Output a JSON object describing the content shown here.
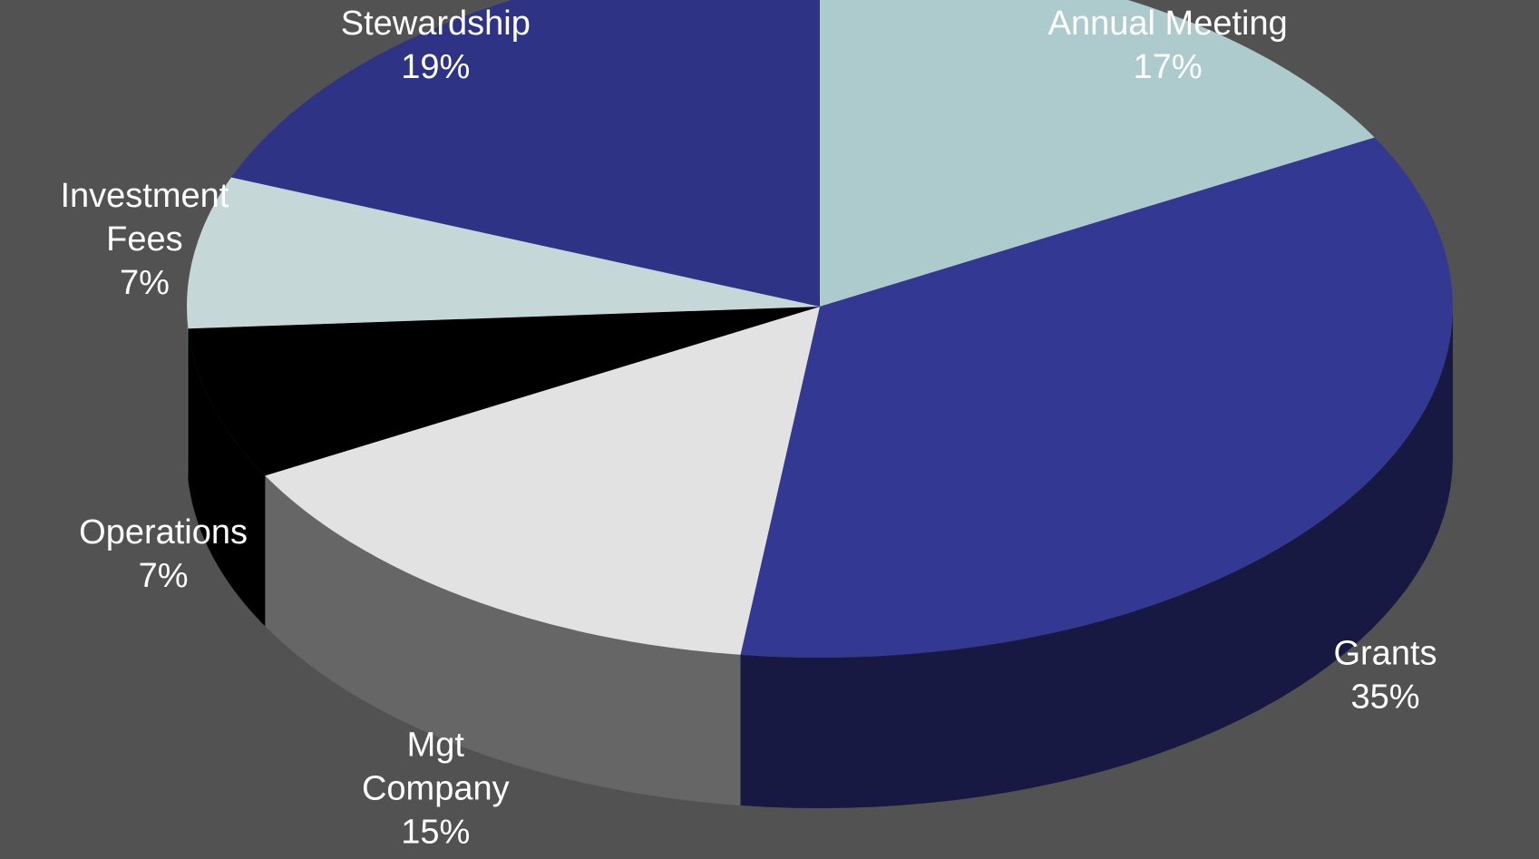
{
  "chart_data": {
    "type": "pie",
    "style": "3d",
    "title": "",
    "slices": [
      {
        "name": "Annual Meeting",
        "label_lines": [
          "Annual Meeting"
        ],
        "value": 17,
        "value_label": "17%",
        "color": "#adcbcd"
      },
      {
        "name": "Grants",
        "label_lines": [
          "Grants"
        ],
        "value": 35,
        "value_label": "35%",
        "color": "#333893"
      },
      {
        "name": "Mgt Company",
        "label_lines": [
          "Mgt",
          "Company"
        ],
        "value": 15,
        "value_label": "15%",
        "color": "#e2e2e2"
      },
      {
        "name": "Operations",
        "label_lines": [
          "Operations"
        ],
        "value": 7,
        "value_label": "7%",
        "color": "#000000"
      },
      {
        "name": "Investment Fees",
        "label_lines": [
          "Investment",
          "Fees"
        ],
        "value": 7,
        "value_label": "7%",
        "color": "#c5d7d7"
      },
      {
        "name": "Stewardship",
        "label_lines": [
          "Stewardship"
        ],
        "value": 19,
        "value_label": "19%",
        "color": "#2f3386"
      }
    ],
    "legend": "none",
    "background": "#525252"
  }
}
